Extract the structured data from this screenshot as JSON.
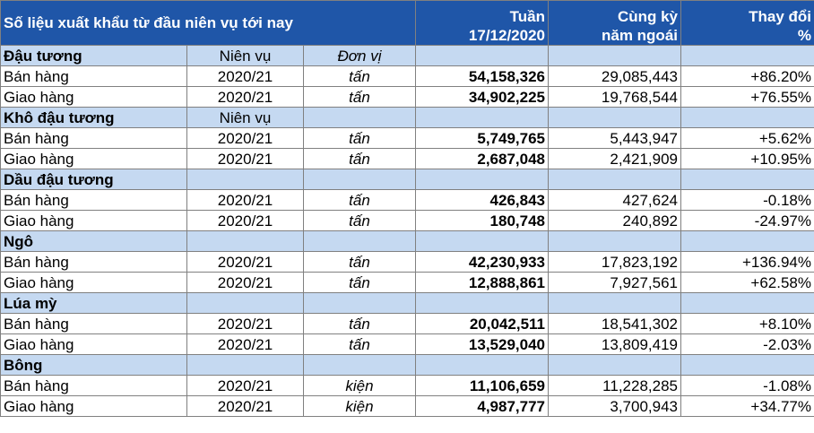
{
  "table": {
    "title": "Số liệu xuất khẩu từ đầu niên vụ tới nay",
    "col_week": [
      "Tuần",
      "17/12/2020"
    ],
    "col_prev": [
      "Cùng kỳ",
      "năm ngoái"
    ],
    "col_change": [
      "Thay đổi",
      "%"
    ],
    "sections": [
      {
        "name": "Đậu tương",
        "season_header": "Niên vụ",
        "unit_header": "Đơn vị",
        "rows": [
          {
            "label": "Bán hàng",
            "season": "2020/21",
            "unit": "tấn",
            "current": "54,158,326",
            "previous": "29,085,443",
            "change": "+86.20%"
          },
          {
            "label": "Giao hàng",
            "season": "2020/21",
            "unit": "tấn",
            "current": "34,902,225",
            "previous": "19,768,544",
            "change": "+76.55%"
          }
        ]
      },
      {
        "name": "Khô đậu tương",
        "season_header": "Niên vụ",
        "unit_header": "",
        "rows": [
          {
            "label": "Bán hàng",
            "season": "2020/21",
            "unit": "tấn",
            "current": "5,749,765",
            "previous": "5,443,947",
            "change": "+5.62%"
          },
          {
            "label": "Giao hàng",
            "season": "2020/21",
            "unit": "tấn",
            "current": "2,687,048",
            "previous": "2,421,909",
            "change": "+10.95%"
          }
        ]
      },
      {
        "name": "Dầu đậu tương",
        "season_header": "",
        "unit_header": "",
        "rows": [
          {
            "label": "Bán hàng",
            "season": "2020/21",
            "unit": "tấn",
            "current": "426,843",
            "previous": "427,624",
            "change": "-0.18%"
          },
          {
            "label": "Giao hàng",
            "season": "2020/21",
            "unit": "tấn",
            "current": "180,748",
            "previous": "240,892",
            "change": "-24.97%"
          }
        ]
      },
      {
        "name": "Ngô",
        "season_header": "",
        "unit_header": "",
        "rows": [
          {
            "label": "Bán hàng",
            "season": "2020/21",
            "unit": "tấn",
            "current": "42,230,933",
            "previous": "17,823,192",
            "change": "+136.94%"
          },
          {
            "label": "Giao hàng",
            "season": "2020/21",
            "unit": "tấn",
            "current": "12,888,861",
            "previous": "7,927,561",
            "change": "+62.58%"
          }
        ]
      },
      {
        "name": "Lúa mỳ",
        "season_header": "",
        "unit_header": "",
        "rows": [
          {
            "label": "Bán hàng",
            "season": "2020/21",
            "unit": "tấn",
            "current": "20,042,511",
            "previous": "18,541,302",
            "change": "+8.10%"
          },
          {
            "label": "Giao hàng",
            "season": "2020/21",
            "unit": "tấn",
            "current": "13,529,040",
            "previous": "13,809,419",
            "change": "-2.03%"
          }
        ]
      },
      {
        "name": "Bông",
        "season_header": "",
        "unit_header": "",
        "rows": [
          {
            "label": "Bán hàng",
            "season": "2020/21",
            "unit": "kiện",
            "current": "11,106,659",
            "previous": "11,228,285",
            "change": "-1.08%"
          },
          {
            "label": "Giao hàng",
            "season": "2020/21",
            "unit": "kiện",
            "current": "4,987,777",
            "previous": "3,700,943",
            "change": "+34.77%"
          }
        ]
      }
    ]
  },
  "colors": {
    "header_bg": "#1f56a8",
    "section_bg": "#c5d9f1",
    "positive": "#008000",
    "negative": "#e00000"
  }
}
